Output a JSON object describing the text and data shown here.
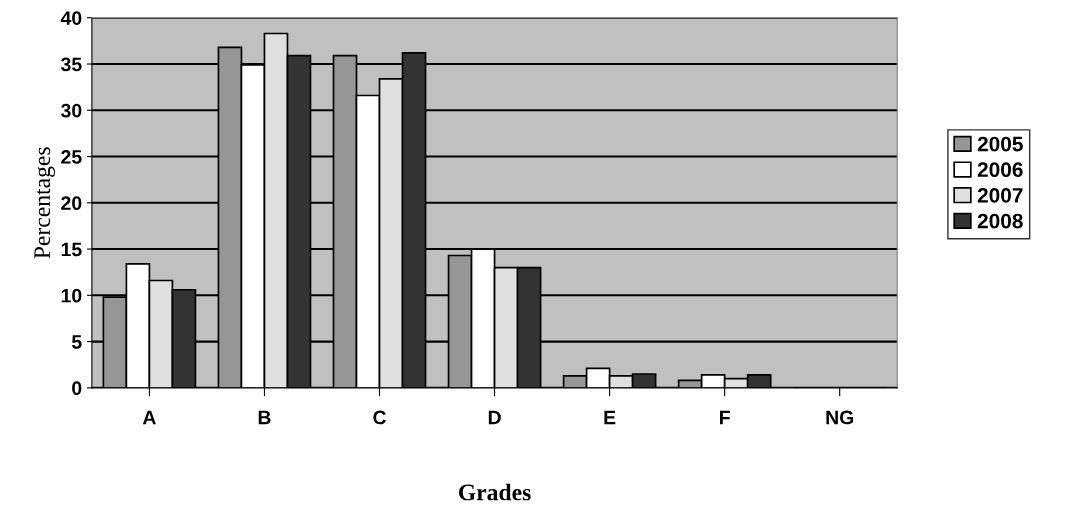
{
  "chart_data": {
    "type": "bar",
    "xlabel": "Grades",
    "ylabel": "Percentages",
    "categories": [
      "A",
      "B",
      "C",
      "D",
      "E",
      "F",
      "NG"
    ],
    "series": [
      {
        "name": "2005",
        "color": "#969696",
        "values": [
          9.8,
          36.8,
          35.9,
          14.3,
          1.3,
          0.8,
          null
        ]
      },
      {
        "name": "2006",
        "color": "#ffffff",
        "values": [
          13.4,
          34.9,
          31.6,
          15.0,
          2.1,
          1.4,
          null
        ]
      },
      {
        "name": "2007",
        "color": "#e0e0e0",
        "values": [
          11.6,
          38.3,
          33.4,
          13.0,
          1.3,
          1.0,
          null
        ]
      },
      {
        "name": "2008",
        "color": "#333333",
        "values": [
          10.6,
          35.9,
          36.2,
          13.0,
          1.5,
          1.4,
          null
        ]
      }
    ],
    "ylim": [
      0,
      40
    ],
    "yticks": [
      0,
      5,
      10,
      15,
      20,
      25,
      30,
      35,
      40
    ],
    "grid": "y",
    "legend": "right"
  }
}
